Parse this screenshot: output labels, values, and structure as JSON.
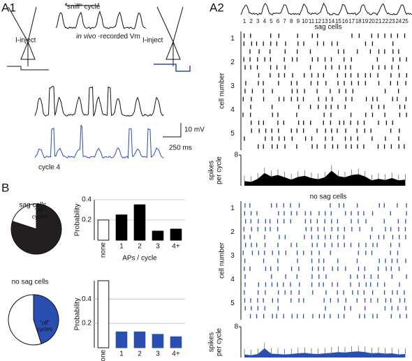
{
  "panels": {
    "a1": "A1",
    "a2": "A2",
    "b": "B"
  },
  "a1": {
    "sniff": "\"sniff\" cycle",
    "vm_italic": "in vivo",
    "vm_rest": "-recorded Vm",
    "iinject_left": "I-inject",
    "iinject_right": "I-inject",
    "scale_mv": "10 mV",
    "scale_ms": "250 ms",
    "cycle4": "cycle 4"
  },
  "a2": {
    "cycles": [
      "1",
      "2",
      "3",
      "4",
      "5",
      "6",
      "7",
      "8",
      "9",
      "10",
      "11",
      "12",
      "13",
      "14",
      "15",
      "16",
      "17",
      "18",
      "19",
      "20",
      "21",
      "22",
      "23",
      "24",
      "25"
    ],
    "sag": {
      "title": "sag cells",
      "ylabel": "cell number",
      "cells": [
        "1",
        "2",
        "3",
        "4",
        "5"
      ],
      "rate_label": [
        "spikes",
        "per cycle"
      ],
      "chart_data": {
        "type": "area",
        "color": "#000000",
        "ylim": [
          0,
          8
        ],
        "yticks": [
          8
        ],
        "values": [
          1.2,
          1.0,
          1.8,
          3.3,
          2.4,
          2.8,
          2.2,
          1.6,
          2.3,
          2.6,
          2.0,
          1.7,
          2.2,
          3.9,
          2.5,
          2.2,
          2.8,
          3.0,
          2.4,
          1.4,
          1.8,
          1.5,
          2.0,
          1.4,
          1.6
        ]
      }
    },
    "nosag": {
      "title": "no sag cells",
      "ylabel": "cell number",
      "cells": [
        "1",
        "2",
        "3",
        "4",
        "5"
      ],
      "rate_label": [
        "spikes",
        "per cycle"
      ],
      "chart_data": {
        "type": "area",
        "color": "#2a4fb0",
        "ylim": [
          0,
          8
        ],
        "yticks": [
          8
        ],
        "values": [
          0.8,
          0.6,
          0.9,
          2.4,
          1.0,
          0.9,
          0.8,
          0.9,
          1.1,
          1.2,
          1.0,
          0.9,
          1.1,
          1.2,
          1.4,
          1.3,
          1.5,
          1.6,
          1.4,
          1.1,
          1.2,
          1.0,
          1.1,
          0.8,
          0.9
        ]
      }
    }
  },
  "b": {
    "sag": {
      "pie_title": "sag cells",
      "off": [
        "\"off\"",
        "cycles"
      ],
      "pie_values": [
        80,
        20
      ],
      "pie_colors": [
        "#231f20",
        "#ffffff"
      ],
      "chart_data": {
        "type": "bar",
        "ylabel": "Probability",
        "xlabel": "APs / cycle",
        "categories": [
          "none",
          "1",
          "2",
          "3",
          "4+"
        ],
        "values": [
          0.2,
          0.25,
          0.35,
          0.09,
          0.11
        ],
        "colors": [
          "#ffffff",
          "#000000",
          "#000000",
          "#000000",
          "#000000"
        ],
        "ylim": [
          0,
          0.4
        ],
        "yticks": [
          0.2,
          0.4
        ],
        "grid": true
      }
    },
    "nosag": {
      "pie_title": "no sag cells",
      "off": [
        "\"off\"",
        "cycles"
      ],
      "pie_values": [
        45,
        55
      ],
      "pie_colors": [
        "#2a4fb0",
        "#ffffff"
      ],
      "chart_data": {
        "type": "bar",
        "ylabel": "Probability",
        "xlabel": "APs / cycle",
        "categories": [
          "none",
          "1",
          "2",
          "3",
          "4+"
        ],
        "values": [
          0.55,
          0.13,
          0.13,
          0.11,
          0.09
        ],
        "colors": [
          "#ffffff",
          "#2a4fb0",
          "#2a4fb0",
          "#2a4fb0",
          "#2a4fb0"
        ],
        "ylim": [
          0,
          0.55
        ],
        "yticks": [
          0.2,
          0.4
        ],
        "grid": true
      }
    }
  }
}
